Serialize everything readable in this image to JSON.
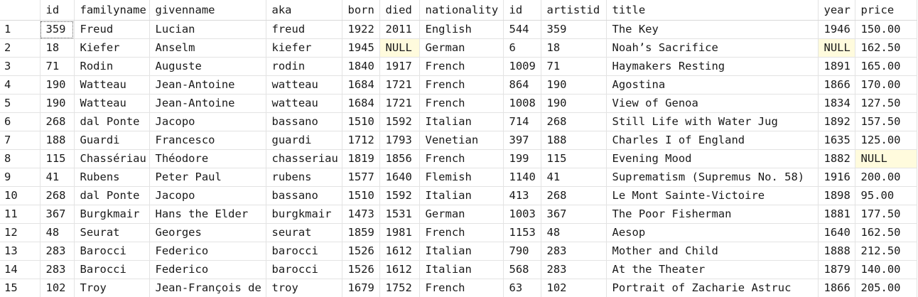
{
  "grid": {
    "columns": [
      "",
      "id",
      "familyname",
      "givenname",
      "aka",
      "born",
      "died",
      "nationality",
      "id",
      "artistid",
      "title",
      "year",
      "price"
    ],
    "rows": [
      [
        "1",
        "359",
        "Freud",
        "Lucian",
        "freud",
        "1922",
        "2011",
        "English",
        "544",
        "359",
        "The Key",
        "1946",
        "150.00"
      ],
      [
        "2",
        "18",
        "Kiefer",
        "Anselm",
        "kiefer",
        "1945",
        "NULL",
        "German",
        "6",
        "18",
        "Noah’s Sacrifice",
        "NULL",
        "162.50"
      ],
      [
        "3",
        "71",
        "Rodin",
        "Auguste",
        "rodin",
        "1840",
        "1917",
        "French",
        "1009",
        "71",
        "Haymakers Resting",
        "1891",
        "165.00"
      ],
      [
        "4",
        "190",
        "Watteau",
        "Jean-Antoine",
        "watteau",
        "1684",
        "1721",
        "French",
        "864",
        "190",
        "Agostina",
        "1866",
        "170.00"
      ],
      [
        "5",
        "190",
        "Watteau",
        "Jean-Antoine",
        "watteau",
        "1684",
        "1721",
        "French",
        "1008",
        "190",
        "View of Genoa",
        "1834",
        "127.50"
      ],
      [
        "6",
        "268",
        "dal Ponte",
        "Jacopo",
        "bassano",
        "1510",
        "1592",
        "Italian",
        "714",
        "268",
        "Still Life with Water Jug",
        "1892",
        "157.50"
      ],
      [
        "7",
        "188",
        "Guardi",
        "Francesco",
        "guardi",
        "1712",
        "1793",
        "Venetian",
        "397",
        "188",
        "Charles I of England",
        "1635",
        "125.00"
      ],
      [
        "8",
        "115",
        "Chassériau",
        "Théodore",
        "chasseriau",
        "1819",
        "1856",
        "French",
        "199",
        "115",
        "Evening Mood",
        "1882",
        "NULL"
      ],
      [
        "9",
        "41",
        "Rubens",
        "Peter Paul",
        "rubens",
        "1577",
        "1640",
        "Flemish",
        "1140",
        "41",
        "Suprematism (Supremus No. 58)",
        "1916",
        "200.00"
      ],
      [
        "10",
        "268",
        "dal Ponte",
        "Jacopo",
        "bassano",
        "1510",
        "1592",
        "Italian",
        "413",
        "268",
        "Le Mont Sainte-Victoire",
        "1898",
        "95.00"
      ],
      [
        "11",
        "367",
        "Burgkmair",
        "Hans the Elder",
        "burgkmair",
        "1473",
        "1531",
        "German",
        "1003",
        "367",
        "The Poor Fisherman",
        "1881",
        "177.50"
      ],
      [
        "12",
        "48",
        "Seurat",
        "Georges",
        "seurat",
        "1859",
        "1981",
        "French",
        "1153",
        "48",
        "Aesop",
        "1640",
        "162.50"
      ],
      [
        "13",
        "283",
        "Barocci",
        "Federico",
        "barocci",
        "1526",
        "1612",
        "Italian",
        "790",
        "283",
        "Mother and Child",
        "1888",
        "212.50"
      ],
      [
        "14",
        "283",
        "Barocci",
        "Federico",
        "barocci",
        "1526",
        "1612",
        "Italian",
        "568",
        "283",
        "At the Theater",
        "1879",
        "140.00"
      ],
      [
        "15",
        "102",
        "Troy",
        "Jean-François de",
        "troy",
        "1679",
        "1752",
        "French",
        "63",
        "102",
        "Portrait of Zacharie Astruc",
        "1866",
        "205.00"
      ]
    ],
    "colors": {
      "null_highlight": "#fffbdd",
      "grid_line": "#e3e3e3"
    }
  }
}
